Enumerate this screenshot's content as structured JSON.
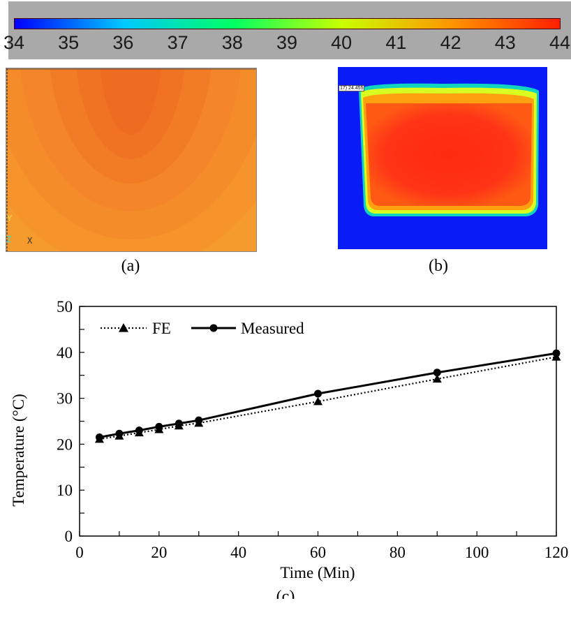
{
  "colorbar": {
    "ticks": [
      "34",
      "35",
      "36",
      "37",
      "38",
      "39",
      "40",
      "41",
      "42",
      "43",
      "44"
    ],
    "colors": [
      "#0000ff",
      "#00c8ff",
      "#00ff64",
      "#c8ff00",
      "#ff9600",
      "#ff2000"
    ]
  },
  "panel_a": {
    "label": "(a)",
    "axis_glyphs": {
      "y": "Y",
      "z": "Z",
      "x": "X"
    }
  },
  "panel_b": {
    "label": "(b)",
    "readout": "17) 24.455"
  },
  "panel_c": {
    "label": "(c)"
  },
  "chart_data": {
    "type": "line",
    "title": "",
    "xlabel": "Time (Min)",
    "ylabel": "Temperature (°C)",
    "xlim": [
      0,
      120
    ],
    "ylim": [
      0,
      50
    ],
    "xticks": [
      "0",
      "20",
      "40",
      "60",
      "80",
      "100",
      "120"
    ],
    "yticks": [
      "0",
      "10",
      "20",
      "30",
      "40",
      "50"
    ],
    "grid": false,
    "legend": "top-left",
    "x": [
      5,
      10,
      15,
      20,
      25,
      30,
      60,
      90,
      120
    ],
    "series": [
      {
        "name": "FE",
        "marker": "triangle",
        "line": "dotted",
        "values": [
          21.1,
          21.8,
          22.5,
          23.2,
          24.0,
          24.6,
          29.3,
          34.2,
          39.0
        ]
      },
      {
        "name": "Measured",
        "marker": "circle",
        "line": "solid",
        "values": [
          21.5,
          22.3,
          23.0,
          23.8,
          24.5,
          25.2,
          31.0,
          35.6,
          39.8
        ]
      }
    ]
  }
}
